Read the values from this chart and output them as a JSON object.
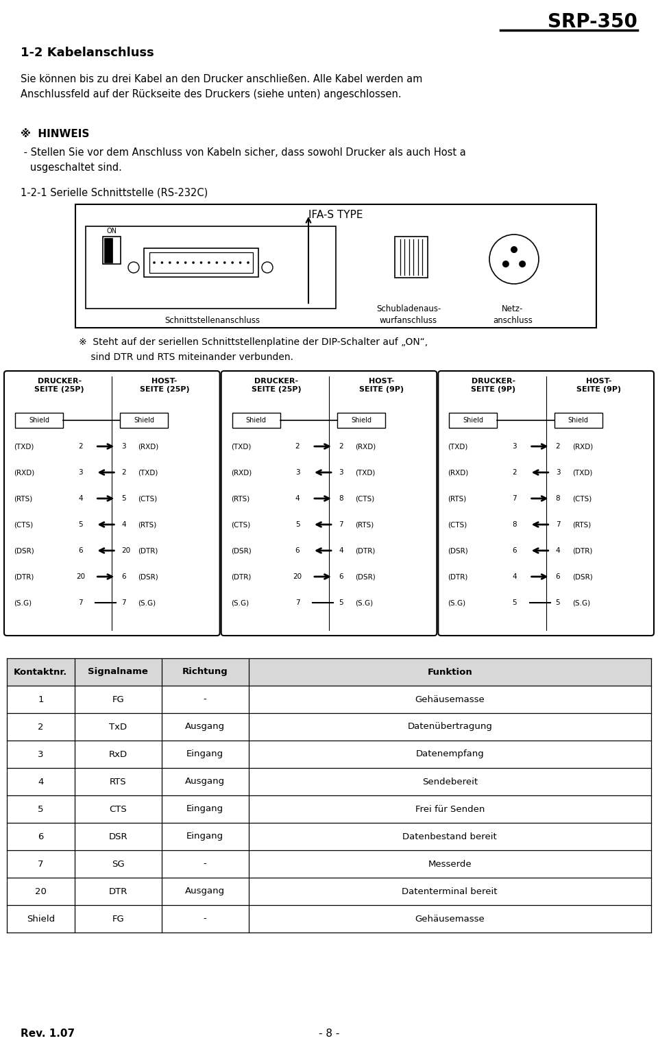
{
  "title": "SRP-350",
  "heading1": "1-2 Kabelanschluss",
  "para1": "Sie können bis zu drei Kabel an den Drucker anschließen. Alle Kabel werden am\nAnschlussfeld auf der Rückseite des Druckers (siehe unten) angeschlossen.",
  "hinweis_title": "※  HINWEIS",
  "hinweis_text": " - Stellen Sie vor dem Anschluss von Kabeln sicher, dass sowohl Drucker als auch Host a\n   usgeschaltet sind.",
  "heading2": "1-2-1 Serielle Schnittstelle (RS-232C)",
  "ifa_label": "IFA-S TYPE",
  "label_schnitt": "Schnittstellenanschluss",
  "label_schub": "Schubladenaus-\nwurfanschluss",
  "label_netz": "Netz-\nanschluss",
  "note_line1": "※  Steht auf der seriellen Schnittstellenplatine der DIP-Schalter auf „ON“,",
  "note_line2": "    sind DTR und RTS miteinander verbunden.",
  "boxes": [
    {
      "drucker_label": "DRUCKER-\nSEITE (25P)",
      "host_label": "HOST-\nSEITE (25P)",
      "drucker_pins": [
        [
          "(TXD)",
          "2"
        ],
        [
          "(RXD)",
          "3"
        ],
        [
          "(RTS)",
          "4"
        ],
        [
          "(CTS)",
          "5"
        ],
        [
          "(DSR)",
          "6"
        ],
        [
          "(DTR)",
          "20"
        ],
        [
          "(S.G)",
          "7"
        ]
      ],
      "host_pins": [
        [
          "3",
          "(RXD)"
        ],
        [
          "2",
          "(TXD)"
        ],
        [
          "5",
          "(CTS)"
        ],
        [
          "4",
          "(RTS)"
        ],
        [
          "20",
          "(DTR)"
        ],
        [
          "6",
          "(DSR)"
        ],
        [
          "7",
          "(S.G)"
        ]
      ],
      "arrows": [
        "right",
        "left",
        "right",
        "left",
        "left",
        "right",
        "none"
      ]
    },
    {
      "drucker_label": "DRUCKER-\nSEITE (25P)",
      "host_label": "HOST-\nSEITE (9P)",
      "drucker_pins": [
        [
          "(TXD)",
          "2"
        ],
        [
          "(RXD)",
          "3"
        ],
        [
          "(RTS)",
          "4"
        ],
        [
          "(CTS)",
          "5"
        ],
        [
          "(DSR)",
          "6"
        ],
        [
          "(DTR)",
          "20"
        ],
        [
          "(S.G)",
          "7"
        ]
      ],
      "host_pins": [
        [
          "2",
          "(RXD)"
        ],
        [
          "3",
          "(TXD)"
        ],
        [
          "8",
          "(CTS)"
        ],
        [
          "7",
          "(RTS)"
        ],
        [
          "4",
          "(DTR)"
        ],
        [
          "6",
          "(DSR)"
        ],
        [
          "5",
          "(S.G)"
        ]
      ],
      "arrows": [
        "right",
        "left",
        "right",
        "left",
        "left",
        "right",
        "none"
      ]
    },
    {
      "drucker_label": "DRUCKER-\nSEITE (9P)",
      "host_label": "HOST-\nSEITE (9P)",
      "drucker_pins": [
        [
          "(TXD)",
          "3"
        ],
        [
          "(RXD)",
          "2"
        ],
        [
          "(RTS)",
          "7"
        ],
        [
          "(CTS)",
          "8"
        ],
        [
          "(DSR)",
          "6"
        ],
        [
          "(DTR)",
          "4"
        ],
        [
          "(S.G)",
          "5"
        ]
      ],
      "host_pins": [
        [
          "2",
          "(RXD)"
        ],
        [
          "3",
          "(TXD)"
        ],
        [
          "8",
          "(CTS)"
        ],
        [
          "7",
          "(RTS)"
        ],
        [
          "4",
          "(DTR)"
        ],
        [
          "6",
          "(DSR)"
        ],
        [
          "5",
          "(S.G)"
        ]
      ],
      "arrows": [
        "right",
        "left",
        "right",
        "left",
        "left",
        "right",
        "none"
      ]
    }
  ],
  "table_header": [
    "Kontaktnr.",
    "Signalname",
    "Richtung",
    "Funktion"
  ],
  "table_rows": [
    [
      "1",
      "FG",
      "-",
      "Gehäusemasse"
    ],
    [
      "2",
      "TxD",
      "Ausgang",
      "Datenübertragung"
    ],
    [
      "3",
      "RxD",
      "Eingang",
      "Datenempfang"
    ],
    [
      "4",
      "RTS",
      "Ausgang",
      "Sendebereit"
    ],
    [
      "5",
      "CTS",
      "Eingang",
      "Frei für Senden"
    ],
    [
      "6",
      "DSR",
      "Eingang",
      "Datenbestand bereit"
    ],
    [
      "7",
      "SG",
      "-",
      "Messerde"
    ],
    [
      "20",
      "DTR",
      "Ausgang",
      "Datenterminal bereit"
    ],
    [
      "Shield",
      "FG",
      "-",
      "Gehäusemasse"
    ]
  ],
  "footer_left": "Rev. 1.07",
  "footer_center": "- 8 -",
  "bg_color": "#ffffff",
  "text_color": "#000000"
}
